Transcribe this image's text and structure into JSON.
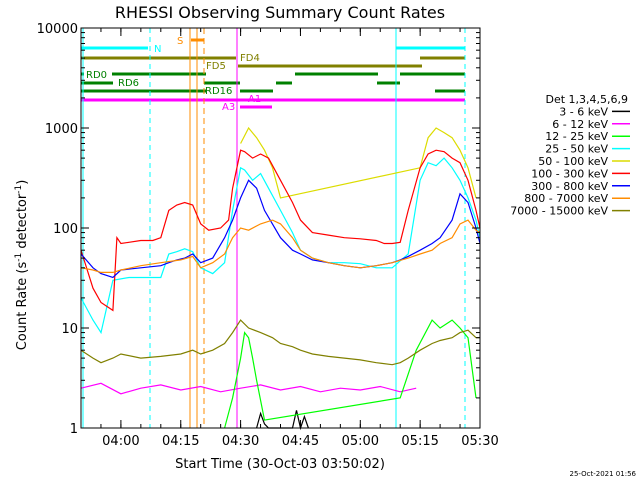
{
  "chart_data": {
    "type": "line",
    "title": "RHESSI Observing Summary Count Rates",
    "xlabel": "Start Time (30-Oct-03 03:50:02)",
    "ylabel_main": "Count Rate (s",
    "ylabel_sup1": "-1",
    "ylabel_mid": " detector",
    "ylabel_sup2": "-1",
    "ylabel_end": ")",
    "timestamp": "25-Oct-2021 01:56",
    "x_start_min": 0,
    "x_end_min": 100,
    "y_scale": "log",
    "ylim": [
      1,
      10000
    ],
    "x_ticks": [
      {
        "t": 10,
        "label": "04:00"
      },
      {
        "t": 25,
        "label": "04:15"
      },
      {
        "t": 40,
        "label": "04:30"
      },
      {
        "t": 55,
        "label": "04:45"
      },
      {
        "t": 70,
        "label": "05:00"
      },
      {
        "t": 85,
        "label": "05:15"
      },
      {
        "t": 100,
        "label": "05:30"
      }
    ],
    "y_ticks": [
      {
        "v": 1,
        "label": "1"
      },
      {
        "v": 10,
        "label": "10"
      },
      {
        "v": 100,
        "label": "100"
      },
      {
        "v": 1000,
        "label": "1000"
      },
      {
        "v": 10000,
        "label": "10000"
      }
    ],
    "legend": {
      "header": "Det 1,3,4,5,6,9",
      "placement": "right"
    },
    "series": [
      {
        "name": "3 - 6 keV",
        "color": "#000000",
        "points": [
          [
            44,
            1
          ],
          [
            45,
            1.4
          ],
          [
            46,
            1.1
          ],
          [
            47,
            1
          ],
          [
            53,
            1
          ],
          [
            54,
            1.5
          ],
          [
            55,
            1
          ],
          [
            56,
            1.3
          ],
          [
            57,
            1
          ]
        ]
      },
      {
        "name": "6 - 12 keV",
        "color": "#ff00ff",
        "points": [
          [
            0,
            2.5
          ],
          [
            5,
            2.8
          ],
          [
            10,
            2.2
          ],
          [
            15,
            2.5
          ],
          [
            20,
            2.7
          ],
          [
            25,
            2.4
          ],
          [
            30,
            2.6
          ],
          [
            35,
            2.3
          ],
          [
            40,
            2.5
          ],
          [
            45,
            2.7
          ],
          [
            50,
            2.4
          ],
          [
            55,
            2.6
          ],
          [
            60,
            2.3
          ],
          [
            65,
            2.5
          ],
          [
            70,
            2.4
          ],
          [
            75,
            2.6
          ],
          [
            80,
            2.3
          ],
          [
            84,
            2.5
          ]
        ]
      },
      {
        "name": "12 - 25 keV",
        "color": "#00ff00",
        "points": [
          [
            36,
            1
          ],
          [
            38,
            2
          ],
          [
            40,
            5
          ],
          [
            41,
            9
          ],
          [
            42,
            8
          ],
          [
            43,
            5
          ],
          [
            44,
            3
          ],
          [
            46,
            1.2
          ],
          [
            80,
            2
          ],
          [
            84,
            6
          ],
          [
            88,
            12
          ],
          [
            90,
            10
          ],
          [
            93,
            12
          ],
          [
            95,
            10
          ],
          [
            97,
            8
          ],
          [
            99,
            2
          ]
        ]
      },
      {
        "name": "25 - 50 keV",
        "color": "#00ffff",
        "points": [
          [
            0,
            20
          ],
          [
            3,
            12
          ],
          [
            5,
            9
          ],
          [
            8,
            30
          ],
          [
            12,
            32
          ],
          [
            15,
            32
          ],
          [
            20,
            32
          ],
          [
            22,
            55
          ],
          [
            24,
            58
          ],
          [
            26,
            62
          ],
          [
            28,
            58
          ],
          [
            30,
            40
          ],
          [
            33,
            35
          ],
          [
            36,
            45
          ],
          [
            38,
            150
          ],
          [
            40,
            400
          ],
          [
            41,
            380
          ],
          [
            43,
            300
          ],
          [
            45,
            350
          ],
          [
            47,
            250
          ],
          [
            50,
            150
          ],
          [
            53,
            90
          ],
          [
            55,
            60
          ],
          [
            58,
            50
          ],
          [
            62,
            45
          ],
          [
            66,
            45
          ],
          [
            70,
            44
          ],
          [
            74,
            40
          ],
          [
            78,
            40
          ],
          [
            82,
            55
          ],
          [
            85,
            300
          ],
          [
            87,
            450
          ],
          [
            89,
            420
          ],
          [
            91,
            500
          ],
          [
            93,
            400
          ],
          [
            95,
            300
          ],
          [
            97,
            200
          ],
          [
            99,
            120
          ],
          [
            100,
            80
          ]
        ]
      },
      {
        "name": "50 - 100 keV",
        "color": "#dcdc00",
        "points": [
          [
            40,
            700
          ],
          [
            42,
            1000
          ],
          [
            44,
            800
          ],
          [
            46,
            600
          ],
          [
            48,
            400
          ],
          [
            50,
            200
          ],
          [
            85,
            400
          ],
          [
            87,
            800
          ],
          [
            89,
            1000
          ],
          [
            91,
            900
          ],
          [
            93,
            800
          ],
          [
            95,
            600
          ],
          [
            97,
            400
          ],
          [
            99,
            200
          ]
        ]
      },
      {
        "name": "100 - 300 keV",
        "color": "#ff0000",
        "points": [
          [
            0,
            60
          ],
          [
            3,
            25
          ],
          [
            5,
            18
          ],
          [
            8,
            15
          ],
          [
            9,
            80
          ],
          [
            10,
            70
          ],
          [
            12,
            72
          ],
          [
            15,
            75
          ],
          [
            18,
            75
          ],
          [
            20,
            80
          ],
          [
            22,
            150
          ],
          [
            24,
            170
          ],
          [
            26,
            180
          ],
          [
            28,
            170
          ],
          [
            30,
            110
          ],
          [
            32,
            95
          ],
          [
            35,
            100
          ],
          [
            37,
            120
          ],
          [
            38,
            250
          ],
          [
            40,
            600
          ],
          [
            41,
            580
          ],
          [
            43,
            500
          ],
          [
            45,
            550
          ],
          [
            47,
            500
          ],
          [
            50,
            300
          ],
          [
            53,
            180
          ],
          [
            55,
            120
          ],
          [
            58,
            90
          ],
          [
            62,
            85
          ],
          [
            66,
            80
          ],
          [
            70,
            78
          ],
          [
            74,
            75
          ],
          [
            76,
            70
          ],
          [
            78,
            70
          ],
          [
            80,
            72
          ],
          [
            82,
            150
          ],
          [
            85,
            400
          ],
          [
            87,
            550
          ],
          [
            89,
            600
          ],
          [
            91,
            580
          ],
          [
            93,
            500
          ],
          [
            95,
            450
          ],
          [
            97,
            300
          ],
          [
            99,
            150
          ],
          [
            100,
            100
          ]
        ]
      },
      {
        "name": "300 - 800 keV",
        "color": "#0000ff",
        "points": [
          [
            0,
            55
          ],
          [
            3,
            40
          ],
          [
            5,
            35
          ],
          [
            8,
            32
          ],
          [
            10,
            38
          ],
          [
            15,
            40
          ],
          [
            20,
            42
          ],
          [
            22,
            45
          ],
          [
            24,
            48
          ],
          [
            26,
            50
          ],
          [
            28,
            55
          ],
          [
            30,
            45
          ],
          [
            33,
            50
          ],
          [
            36,
            80
          ],
          [
            38,
            120
          ],
          [
            40,
            200
          ],
          [
            42,
            300
          ],
          [
            44,
            250
          ],
          [
            46,
            150
          ],
          [
            50,
            80
          ],
          [
            53,
            60
          ],
          [
            55,
            55
          ],
          [
            58,
            48
          ],
          [
            62,
            45
          ],
          [
            66,
            42
          ],
          [
            70,
            40
          ],
          [
            74,
            42
          ],
          [
            78,
            45
          ],
          [
            80,
            48
          ],
          [
            82,
            52
          ],
          [
            85,
            60
          ],
          [
            88,
            70
          ],
          [
            90,
            80
          ],
          [
            93,
            120
          ],
          [
            95,
            220
          ],
          [
            97,
            180
          ],
          [
            99,
            100
          ],
          [
            100,
            70
          ]
        ]
      },
      {
        "name": "800 - 7000 keV",
        "color": "#ff8c00",
        "points": [
          [
            0,
            40
          ],
          [
            3,
            38
          ],
          [
            5,
            36
          ],
          [
            8,
            36
          ],
          [
            10,
            38
          ],
          [
            15,
            42
          ],
          [
            20,
            45
          ],
          [
            25,
            48
          ],
          [
            28,
            52
          ],
          [
            30,
            40
          ],
          [
            33,
            45
          ],
          [
            36,
            55
          ],
          [
            38,
            80
          ],
          [
            40,
            100
          ],
          [
            42,
            95
          ],
          [
            45,
            110
          ],
          [
            48,
            120
          ],
          [
            50,
            110
          ],
          [
            53,
            80
          ],
          [
            55,
            60
          ],
          [
            58,
            50
          ],
          [
            62,
            45
          ],
          [
            66,
            42
          ],
          [
            70,
            40
          ],
          [
            74,
            42
          ],
          [
            78,
            45
          ],
          [
            82,
            50
          ],
          [
            85,
            55
          ],
          [
            88,
            60
          ],
          [
            90,
            70
          ],
          [
            93,
            80
          ],
          [
            95,
            110
          ],
          [
            97,
            120
          ],
          [
            99,
            95
          ],
          [
            100,
            90
          ]
        ]
      },
      {
        "name": "7000 - 15000 keV",
        "color": "#808000",
        "points": [
          [
            0,
            6
          ],
          [
            3,
            5
          ],
          [
            5,
            4.5
          ],
          [
            8,
            5
          ],
          [
            10,
            5.5
          ],
          [
            15,
            5
          ],
          [
            20,
            5.2
          ],
          [
            25,
            5.5
          ],
          [
            28,
            6
          ],
          [
            30,
            5.5
          ],
          [
            33,
            6
          ],
          [
            36,
            7
          ],
          [
            38,
            9
          ],
          [
            40,
            12
          ],
          [
            42,
            10
          ],
          [
            45,
            9
          ],
          [
            48,
            8
          ],
          [
            50,
            7
          ],
          [
            53,
            6.5
          ],
          [
            55,
            6
          ],
          [
            58,
            5.5
          ],
          [
            62,
            5.2
          ],
          [
            66,
            5
          ],
          [
            70,
            4.8
          ],
          [
            74,
            4.5
          ],
          [
            78,
            4.3
          ],
          [
            80,
            4.5
          ],
          [
            82,
            5
          ],
          [
            85,
            6
          ],
          [
            88,
            7
          ],
          [
            90,
            7.5
          ],
          [
            93,
            8
          ],
          [
            95,
            9
          ],
          [
            97,
            9.5
          ],
          [
            99,
            8
          ],
          [
            100,
            8
          ]
        ]
      }
    ],
    "annotations": [
      {
        "label": "N",
        "color": "#00ffff"
      },
      {
        "label": "S",
        "color": "#ff8c00"
      },
      {
        "label": "FD4",
        "color": "#808000"
      },
      {
        "label": "FD5",
        "color": "#808000"
      },
      {
        "label": "RD0",
        "color": "#008000"
      },
      {
        "label": "RD6",
        "color": "#008000"
      },
      {
        "label": "RD16",
        "color": "#008000"
      },
      {
        "label": "A1",
        "color": "#ff00ff"
      },
      {
        "label": "A3",
        "color": "#ff00ff"
      }
    ],
    "grid": "off"
  }
}
